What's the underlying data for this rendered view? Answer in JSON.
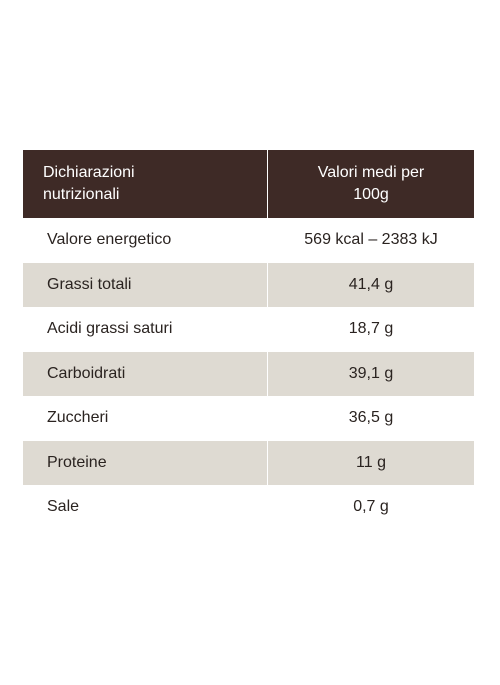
{
  "table": {
    "header": {
      "left": "Dichiarazioni\nnutrizionali",
      "right": "Valori medi per\n100g"
    },
    "rows": [
      {
        "label": "Valore energetico",
        "value": "569 kcal – 2383 kJ"
      },
      {
        "label": "Grassi totali",
        "value": "41,4 g"
      },
      {
        "label": "Acidi grassi saturi",
        "value": "18,7 g"
      },
      {
        "label": "Carboidrati",
        "value": "39,1 g"
      },
      {
        "label": "Zuccheri",
        "value": "36,5 g"
      },
      {
        "label": "Proteine",
        "value": "11 g"
      },
      {
        "label": "Sale",
        "value": "0,7 g"
      }
    ]
  },
  "colors": {
    "header_background": "#3e2a26",
    "header_text": "#ffffff",
    "shaded_row": "#dedad2",
    "body_text": "#2a2320"
  }
}
